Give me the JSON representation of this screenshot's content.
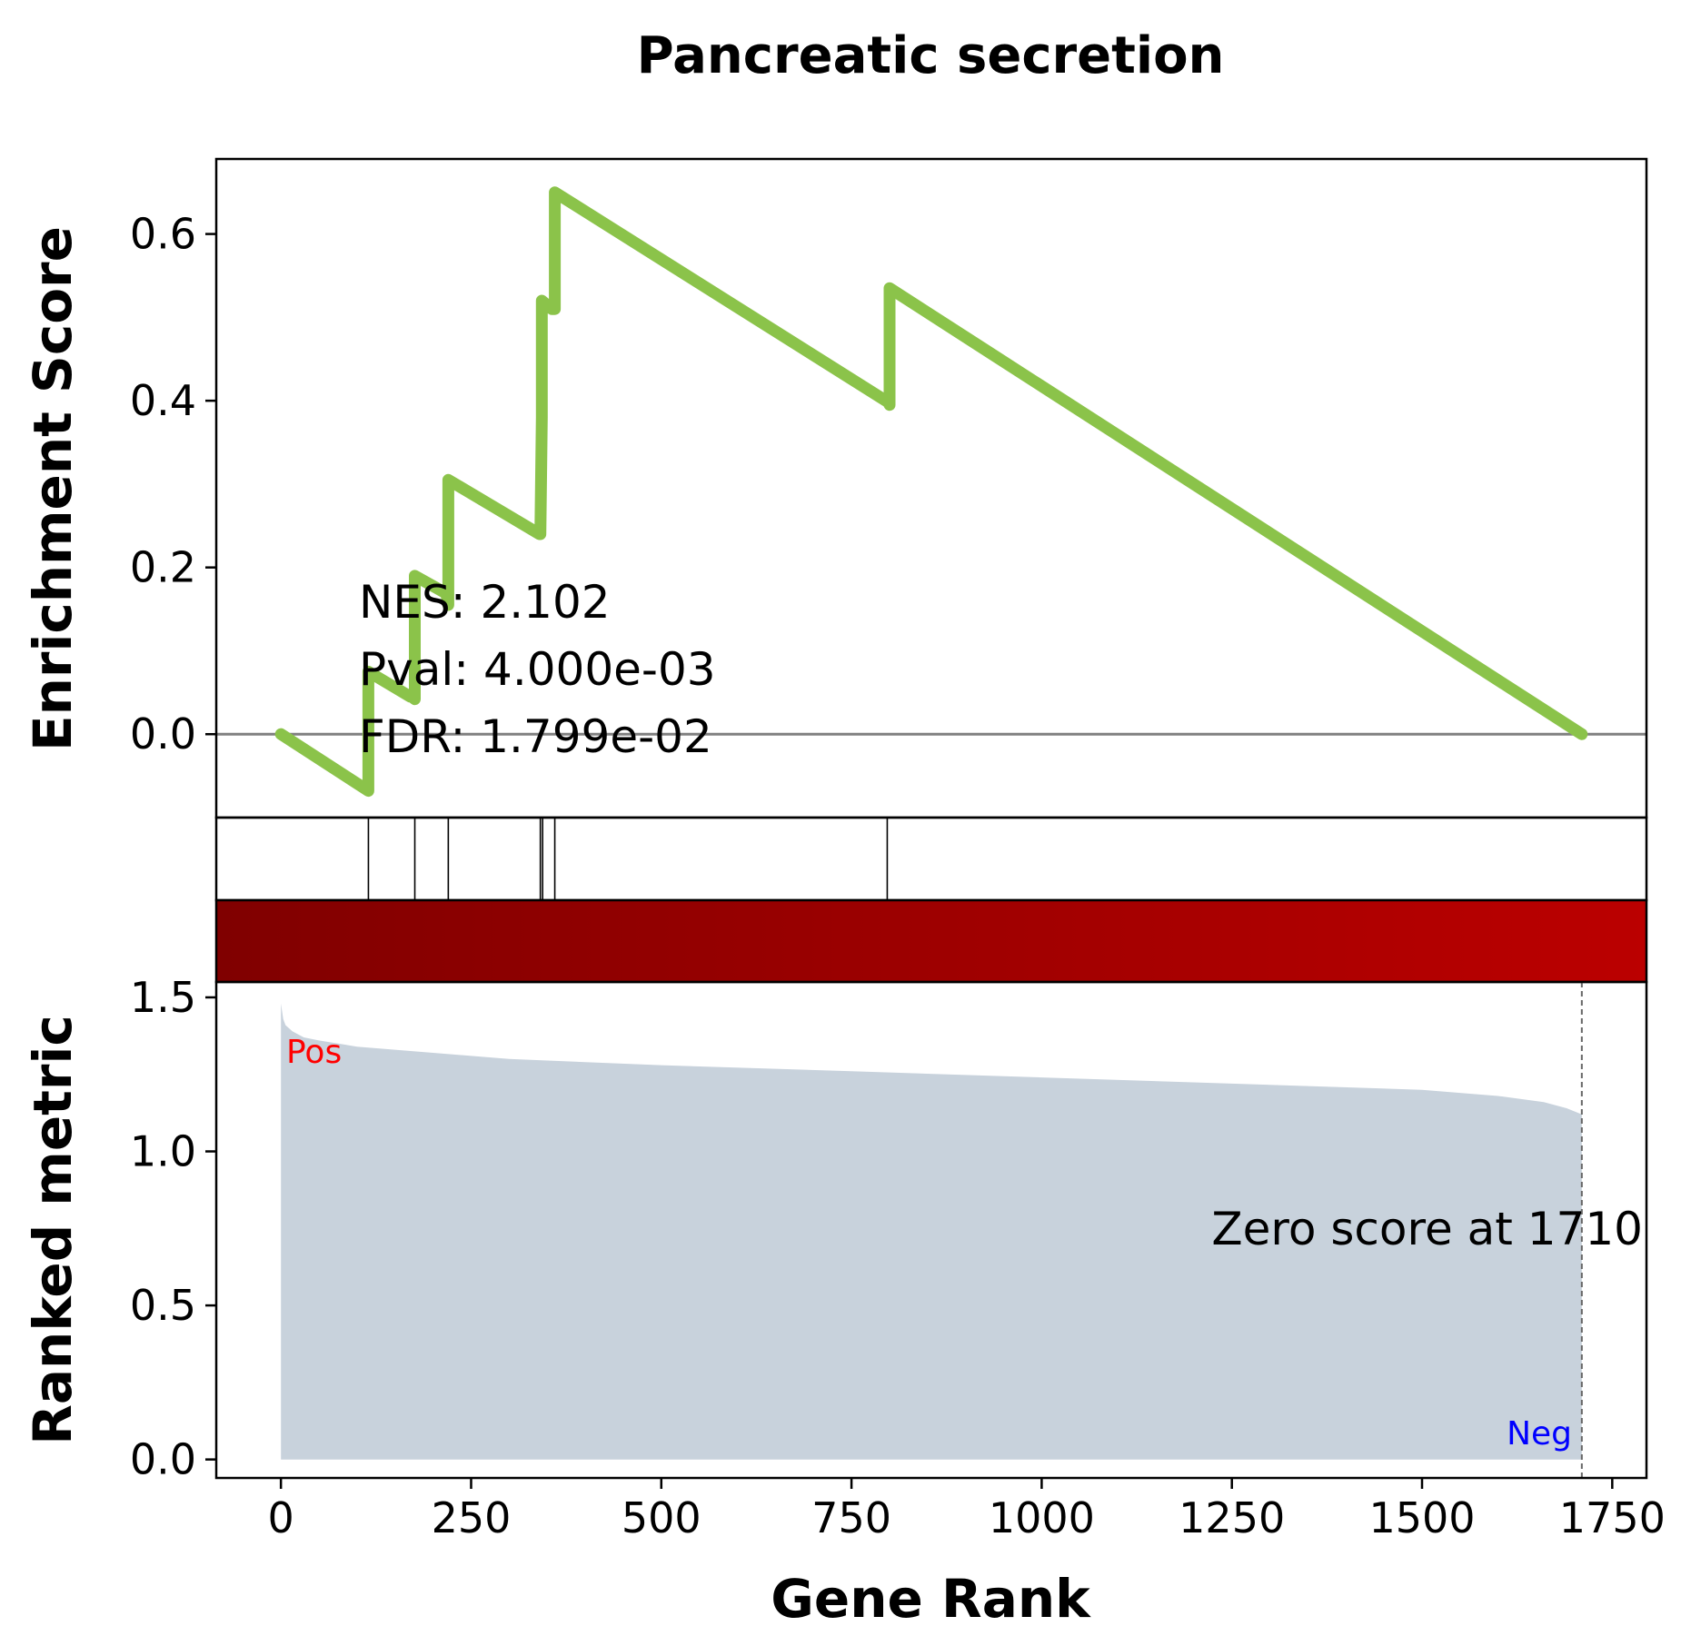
{
  "chart_data": {
    "type": "line",
    "title": "Pancreatic secretion",
    "xlabel": "Gene Rank",
    "xlim": [
      -85,
      1795
    ],
    "xticks": [
      0,
      250,
      500,
      750,
      1000,
      1250,
      1500,
      1750
    ],
    "xtick_labels": [
      "0",
      "250",
      "500",
      "750",
      "1000",
      "1250",
      "1500",
      "1750"
    ],
    "grid": false,
    "panels": {
      "enrichment": {
        "ylabel": "Enrichment Score",
        "ylim": [
          -0.1,
          0.69
        ],
        "yticks": [
          0.0,
          0.2,
          0.4,
          0.6
        ],
        "ytick_labels": [
          "0.0",
          "0.2",
          "0.4",
          "0.6"
        ],
        "line_color": "#8bc34a",
        "zero_line_color": "#808080",
        "series": [
          {
            "x": [
              0,
              115,
              115,
              170,
              172,
              176,
              176,
              215,
              217,
              220,
              220,
              340,
              341,
              343,
              343,
              356,
              357,
              360,
              360,
              795,
              797,
              800,
              800,
              1710
            ],
            "values": [
              0.0,
              -0.068,
              0.075,
              0.045,
              0.045,
              0.042,
              0.19,
              0.17,
              0.17,
              0.155,
              0.305,
              0.24,
              0.24,
              0.38,
              0.52,
              0.51,
              0.51,
              0.51,
              0.65,
              0.4,
              0.4,
              0.395,
              0.535,
              0.0
            ]
          }
        ],
        "annotations": {
          "nes": "NES: 2.102",
          "pval": "Pval: 4.000e-03",
          "fdr": "FDR: 1.799e-02"
        }
      },
      "hits": {
        "positions": [
          115,
          176,
          220,
          341,
          344,
          360,
          797
        ]
      },
      "colorbar": {
        "start_color": "#800000",
        "end_color": "#bb0000"
      },
      "ranked_metric": {
        "ylabel": "Ranked metric",
        "ylim": [
          -0.06,
          1.55
        ],
        "yticks": [
          0.0,
          0.5,
          1.0,
          1.5
        ],
        "ytick_labels": [
          "0.0",
          "0.5",
          "1.0",
          "1.5"
        ],
        "fill_color": "#c8d2dc",
        "x": [
          0,
          3,
          6,
          15,
          30,
          50,
          100,
          200,
          300,
          500,
          750,
          1000,
          1250,
          1500,
          1600,
          1660,
          1690,
          1700,
          1710
        ],
        "values": [
          1.48,
          1.43,
          1.41,
          1.39,
          1.37,
          1.36,
          1.34,
          1.32,
          1.3,
          1.28,
          1.26,
          1.24,
          1.22,
          1.2,
          1.18,
          1.16,
          1.14,
          1.13,
          1.12
        ],
        "pos_label": "Pos",
        "neg_label": "Neg",
        "pos_color": "#ff0000",
        "neg_color": "#0000ff",
        "zero_score_text": "Zero score at 1710",
        "zero_score_rank": 1710
      }
    }
  }
}
